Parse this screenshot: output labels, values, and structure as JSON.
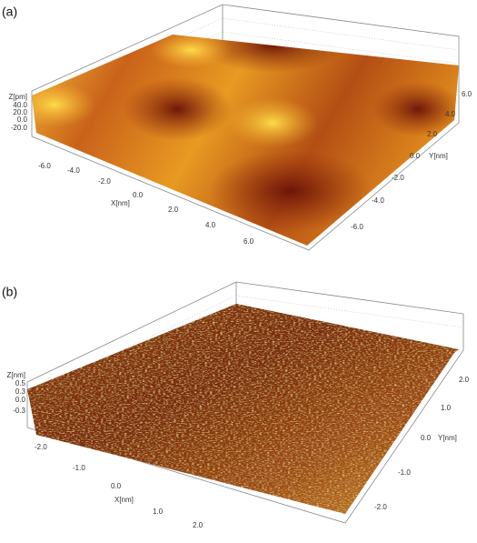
{
  "panels": [
    {
      "label": "(a)",
      "z_axis": {
        "title": "Z[pm]",
        "ticks": [
          "40.0",
          "20.0",
          "0.0",
          "-20.0"
        ]
      },
      "x_axis": {
        "title": "X[nm]",
        "ticks": [
          "-6.0",
          "-4.0",
          "-2.0",
          "0.0",
          "2.0",
          "4.0",
          "6.0"
        ]
      },
      "y_axis": {
        "title": "Y[nm]",
        "ticks": [
          "6.0",
          "4.0",
          "2.0",
          "0.0",
          "-2.0",
          "-4.0",
          "-6.0"
        ]
      }
    },
    {
      "label": "(b)",
      "z_axis": {
        "title": "Z[nm]",
        "ticks": [
          "0.5",
          "0.3",
          "0.0",
          "-0.3"
        ]
      },
      "x_axis": {
        "title": "X[nm]",
        "ticks": [
          "-2.0",
          "-1.0",
          "0.0",
          "1.0",
          "2.0"
        ]
      },
      "y_axis": {
        "title": "Y[nm]",
        "ticks": [
          "2.0",
          "1.0",
          "0.0",
          "-1.0",
          "-2.0"
        ]
      }
    }
  ]
}
